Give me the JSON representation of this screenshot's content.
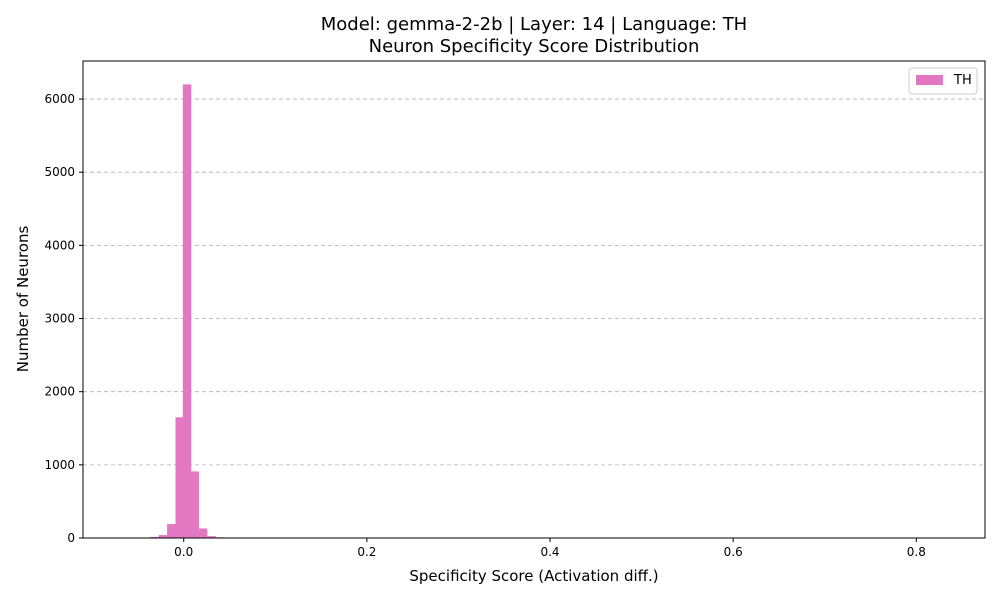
{
  "chart_data": {
    "type": "bar",
    "title": "Model: gemma-2-2b | Layer: 14 | Language: TH",
    "subtitle": "Neuron Specificity Score Distribution",
    "xlabel": "Specificity Score (Activation diff.)",
    "ylabel": "Number of Neurons",
    "xlim": [
      -0.11,
      0.875
    ],
    "ylim": [
      0,
      6520
    ],
    "xticks": [
      0.0,
      0.2,
      0.4,
      0.6,
      0.8
    ],
    "xtick_labels": [
      "0.0",
      "0.2",
      "0.4",
      "0.6",
      "0.8"
    ],
    "yticks": [
      0,
      1000,
      2000,
      3000,
      4000,
      5000,
      6000
    ],
    "ytick_labels": [
      "0",
      "1000",
      "2000",
      "3000",
      "4000",
      "5000",
      "6000"
    ],
    "grid": "y-dashed",
    "legend_position": "top-right",
    "bin_width": 0.0092,
    "series": [
      {
        "name": "TH",
        "color": "#e377c2",
        "bins": [
          {
            "x0": -0.0458,
            "count": 5
          },
          {
            "x0": -0.0366,
            "count": 15
          },
          {
            "x0": -0.0274,
            "count": 40
          },
          {
            "x0": -0.0182,
            "count": 190
          },
          {
            "x0": -0.009,
            "count": 1650
          },
          {
            "x0": -0.001,
            "count": 6200
          },
          {
            "x0": 0.0074,
            "count": 910
          },
          {
            "x0": 0.0166,
            "count": 130
          },
          {
            "x0": 0.0258,
            "count": 25
          },
          {
            "x0": 0.035,
            "count": 10
          },
          {
            "x0": 0.0442,
            "count": 6
          },
          {
            "x0": 0.0534,
            "count": 3
          }
        ]
      }
    ]
  }
}
